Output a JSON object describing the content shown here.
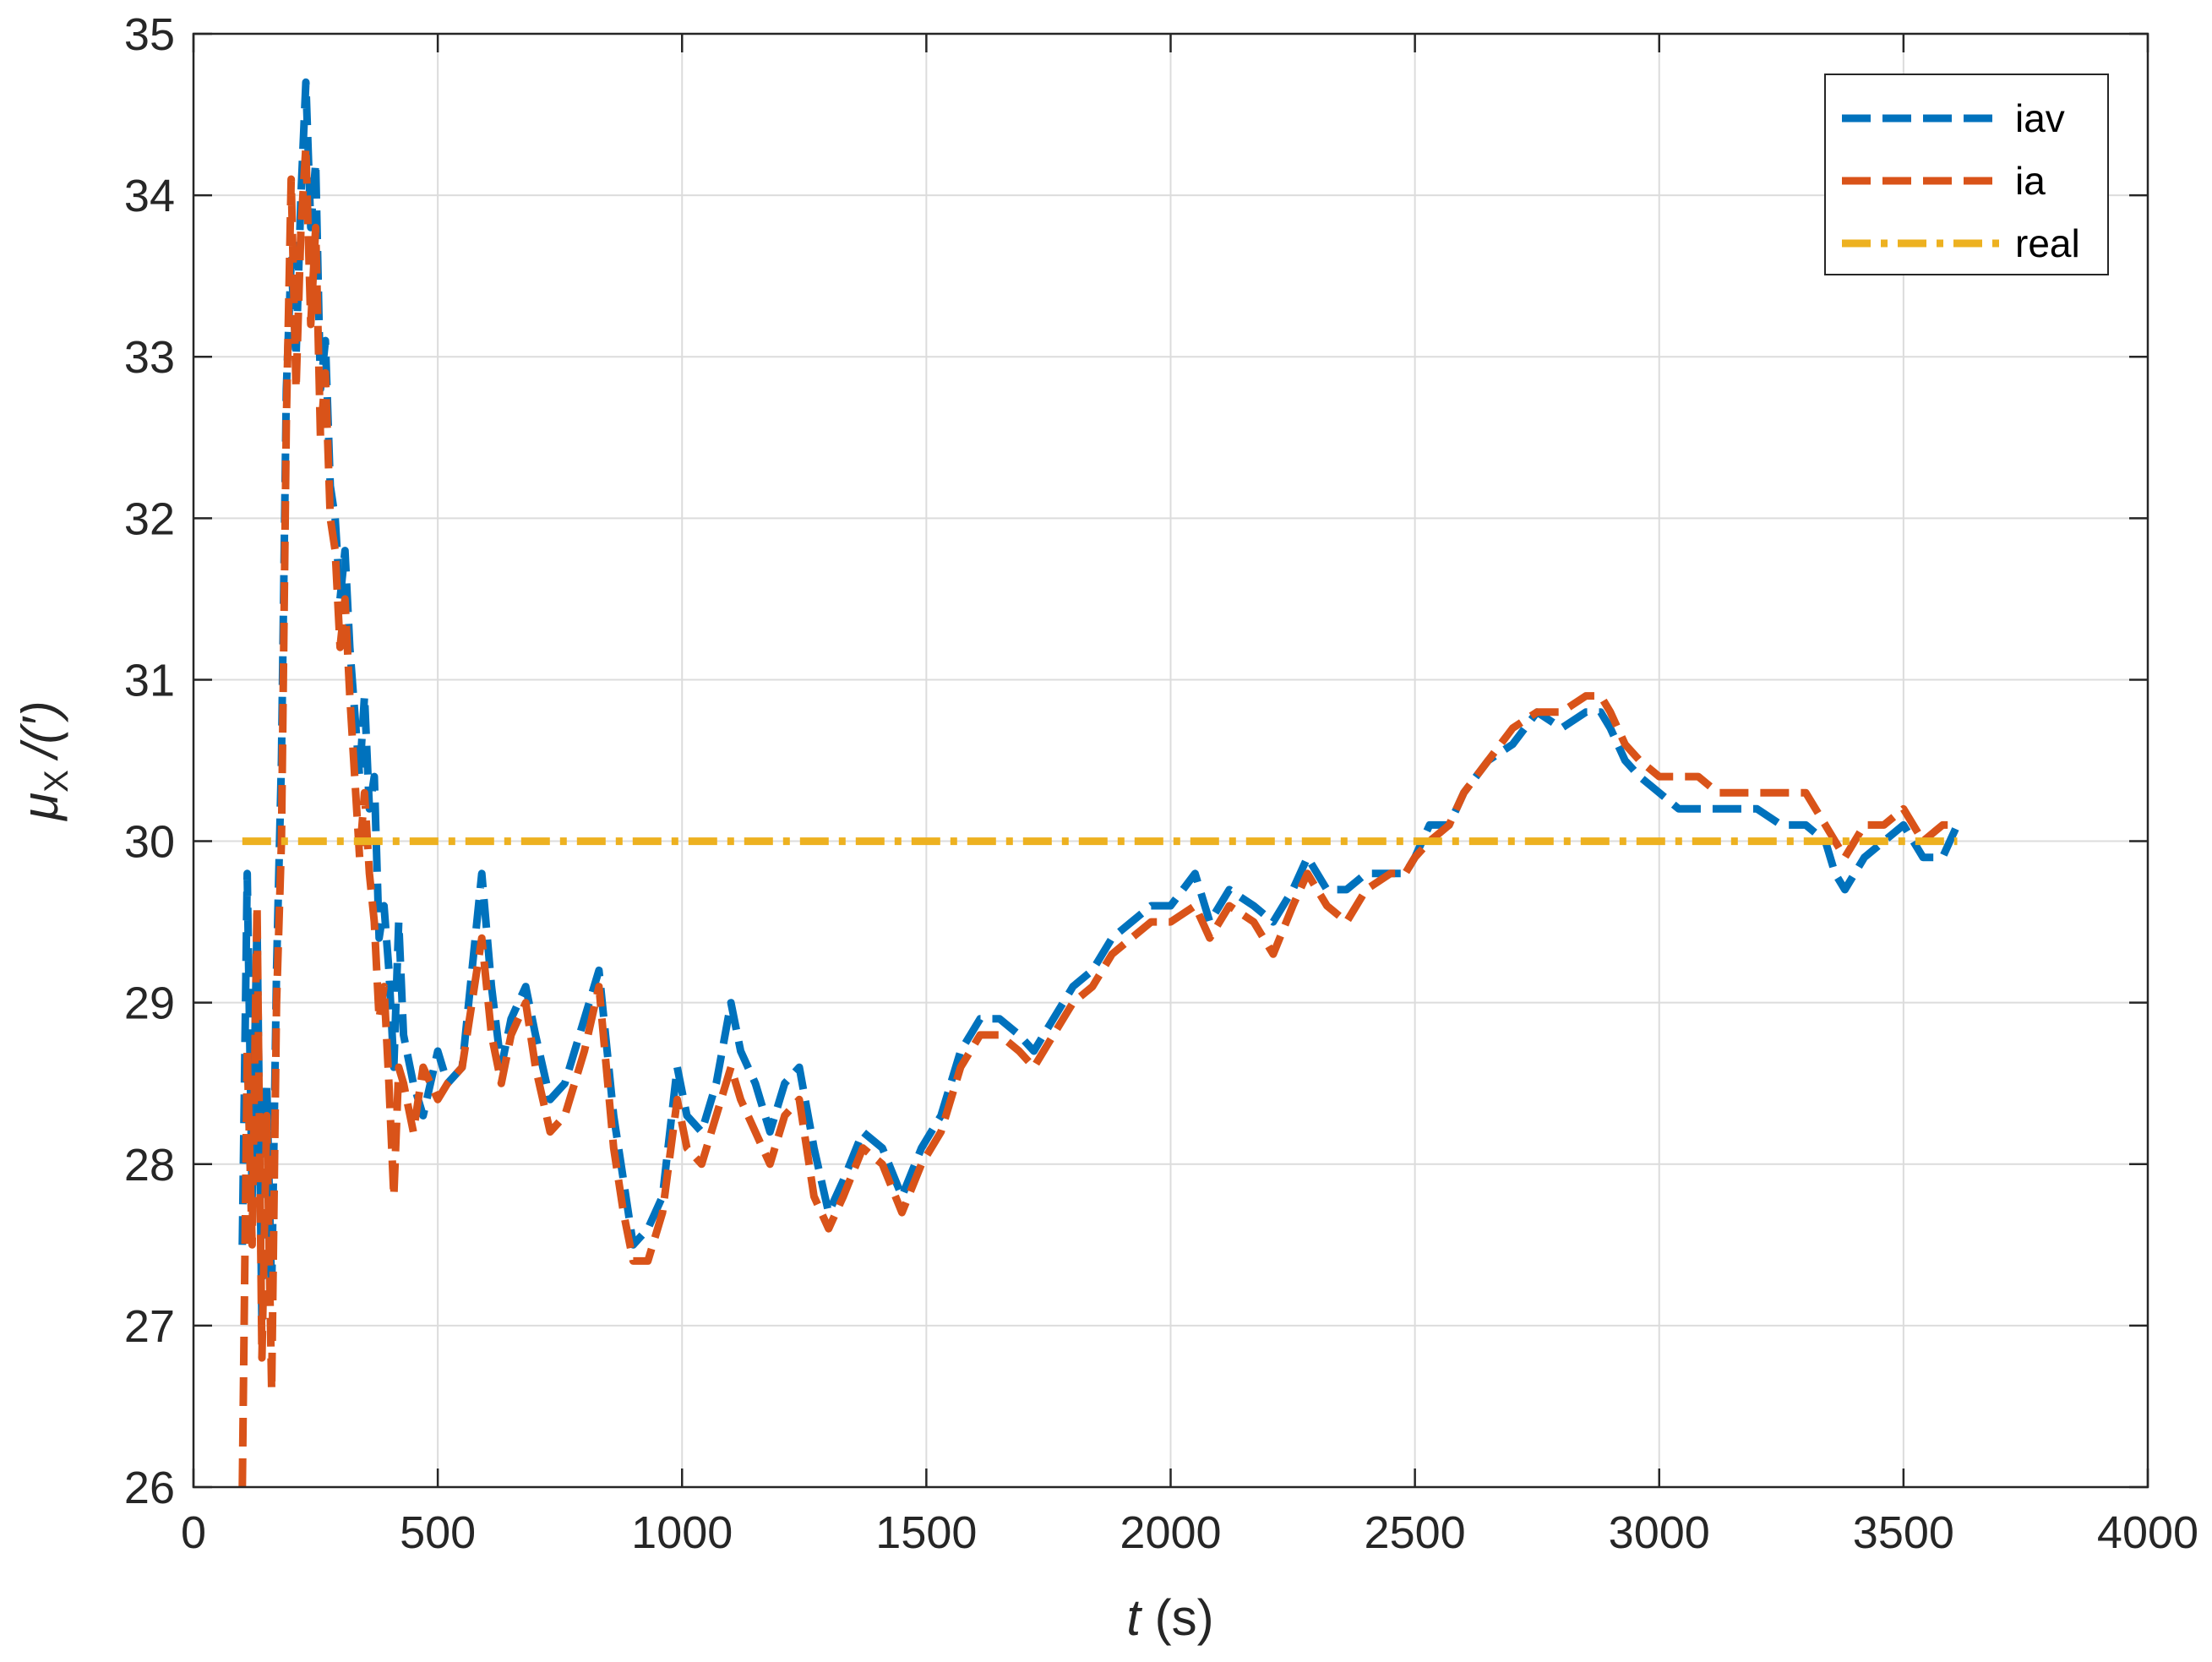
{
  "chart_data": {
    "type": "line",
    "xlabel": {
      "italic": "t",
      "rest": " (s)"
    },
    "ylabel": {
      "symbol": "μ",
      "subscript": "X",
      "rest": "/(′)"
    },
    "xlim": [
      0,
      4000
    ],
    "ylim": [
      26,
      35
    ],
    "xticks": [
      0,
      500,
      1000,
      1500,
      2000,
      2500,
      3000,
      3500,
      4000
    ],
    "yticks": [
      26,
      27,
      28,
      29,
      30,
      31,
      32,
      33,
      34,
      35
    ],
    "xtick_labels": [
      "0",
      "500",
      "1000",
      "1500",
      "2000",
      "2500",
      "3000",
      "3500",
      "4000"
    ],
    "ytick_labels": [
      "26",
      "27",
      "28",
      "29",
      "30",
      "31",
      "32",
      "33",
      "34",
      "35"
    ],
    "grid": true,
    "legend_position": "top-right",
    "series": [
      {
        "name": "iav",
        "color": "#0072BD",
        "dash": "dashed",
        "points": [
          [
            100,
            27.5
          ],
          [
            110,
            29.8
          ],
          [
            120,
            27.8
          ],
          [
            130,
            29.5
          ],
          [
            140,
            27.0
          ],
          [
            150,
            28.5
          ],
          [
            160,
            27.2
          ],
          [
            170,
            29.2
          ],
          [
            180,
            30.5
          ],
          [
            190,
            32.8
          ],
          [
            200,
            33.6
          ],
          [
            210,
            33.0
          ],
          [
            220,
            34.0
          ],
          [
            230,
            34.7
          ],
          [
            240,
            33.8
          ],
          [
            250,
            34.2
          ],
          [
            260,
            32.8
          ],
          [
            270,
            33.1
          ],
          [
            280,
            32.2
          ],
          [
            290,
            32.0
          ],
          [
            300,
            31.5
          ],
          [
            310,
            31.8
          ],
          [
            320,
            31.2
          ],
          [
            330,
            30.8
          ],
          [
            340,
            30.4
          ],
          [
            350,
            30.9
          ],
          [
            360,
            30.2
          ],
          [
            370,
            30.4
          ],
          [
            380,
            29.4
          ],
          [
            390,
            29.6
          ],
          [
            400,
            29.2
          ],
          [
            410,
            28.6
          ],
          [
            420,
            29.5
          ],
          [
            430,
            28.8
          ],
          [
            450,
            28.5
          ],
          [
            470,
            28.3
          ],
          [
            500,
            28.7
          ],
          [
            520,
            28.5
          ],
          [
            550,
            28.6
          ],
          [
            570,
            29.2
          ],
          [
            590,
            29.8
          ],
          [
            610,
            29.1
          ],
          [
            630,
            28.6
          ],
          [
            650,
            28.9
          ],
          [
            680,
            29.1
          ],
          [
            700,
            28.8
          ],
          [
            730,
            28.4
          ],
          [
            760,
            28.5
          ],
          [
            800,
            28.9
          ],
          [
            830,
            29.2
          ],
          [
            860,
            28.3
          ],
          [
            880,
            27.9
          ],
          [
            900,
            27.5
          ],
          [
            930,
            27.6
          ],
          [
            960,
            27.8
          ],
          [
            990,
            28.6
          ],
          [
            1010,
            28.3
          ],
          [
            1040,
            28.2
          ],
          [
            1070,
            28.5
          ],
          [
            1100,
            29.0
          ],
          [
            1120,
            28.7
          ],
          [
            1150,
            28.5
          ],
          [
            1180,
            28.2
          ],
          [
            1210,
            28.5
          ],
          [
            1240,
            28.6
          ],
          [
            1270,
            28.1
          ],
          [
            1300,
            27.7
          ],
          [
            1330,
            27.9
          ],
          [
            1370,
            28.2
          ],
          [
            1410,
            28.1
          ],
          [
            1450,
            27.8
          ],
          [
            1490,
            28.1
          ],
          [
            1530,
            28.3
          ],
          [
            1570,
            28.7
          ],
          [
            1610,
            28.9
          ],
          [
            1650,
            28.9
          ],
          [
            1690,
            28.8
          ],
          [
            1720,
            28.7
          ],
          [
            1760,
            28.9
          ],
          [
            1800,
            29.1
          ],
          [
            1840,
            29.2
          ],
          [
            1880,
            29.4
          ],
          [
            1920,
            29.5
          ],
          [
            1960,
            29.6
          ],
          [
            2000,
            29.6
          ],
          [
            2050,
            29.8
          ],
          [
            2080,
            29.5
          ],
          [
            2120,
            29.7
          ],
          [
            2170,
            29.6
          ],
          [
            2210,
            29.5
          ],
          [
            2250,
            29.7
          ],
          [
            2280,
            29.9
          ],
          [
            2320,
            29.7
          ],
          [
            2360,
            29.7
          ],
          [
            2400,
            29.8
          ],
          [
            2450,
            29.8
          ],
          [
            2480,
            29.8
          ],
          [
            2500,
            29.9
          ],
          [
            2530,
            30.1
          ],
          [
            2570,
            30.1
          ],
          [
            2600,
            30.3
          ],
          [
            2650,
            30.5
          ],
          [
            2700,
            30.6
          ],
          [
            2750,
            30.8
          ],
          [
            2800,
            30.7
          ],
          [
            2850,
            30.8
          ],
          [
            2880,
            30.8
          ],
          [
            2900,
            30.7
          ],
          [
            2930,
            30.5
          ],
          [
            2960,
            30.4
          ],
          [
            3000,
            30.3
          ],
          [
            3040,
            30.2
          ],
          [
            3080,
            30.2
          ],
          [
            3120,
            30.2
          ],
          [
            3160,
            30.2
          ],
          [
            3200,
            30.2
          ],
          [
            3250,
            30.1
          ],
          [
            3300,
            30.1
          ],
          [
            3340,
            30.0
          ],
          [
            3360,
            29.8
          ],
          [
            3380,
            29.7
          ],
          [
            3420,
            29.9
          ],
          [
            3460,
            30.0
          ],
          [
            3500,
            30.1
          ],
          [
            3540,
            29.9
          ],
          [
            3580,
            29.9
          ],
          [
            3610,
            30.1
          ]
        ]
      },
      {
        "name": "ia",
        "color": "#D95319",
        "dash": "dashed",
        "points": [
          [
            100,
            26.0
          ],
          [
            110,
            28.7
          ],
          [
            120,
            27.5
          ],
          [
            130,
            29.6
          ],
          [
            140,
            26.8
          ],
          [
            150,
            28.3
          ],
          [
            160,
            26.6
          ],
          [
            170,
            29.0
          ],
          [
            180,
            30.0
          ],
          [
            190,
            32.6
          ],
          [
            200,
            34.1
          ],
          [
            210,
            32.8
          ],
          [
            220,
            33.8
          ],
          [
            230,
            34.3
          ],
          [
            240,
            33.2
          ],
          [
            250,
            33.8
          ],
          [
            260,
            32.5
          ],
          [
            270,
            32.9
          ],
          [
            280,
            32.0
          ],
          [
            290,
            31.8
          ],
          [
            300,
            31.2
          ],
          [
            310,
            31.5
          ],
          [
            320,
            30.9
          ],
          [
            330,
            30.4
          ],
          [
            340,
            29.9
          ],
          [
            350,
            30.3
          ],
          [
            360,
            29.8
          ],
          [
            370,
            29.5
          ],
          [
            380,
            28.9
          ],
          [
            390,
            29.1
          ],
          [
            400,
            28.5
          ],
          [
            410,
            27.8
          ],
          [
            420,
            28.6
          ],
          [
            430,
            28.5
          ],
          [
            450,
            28.2
          ],
          [
            470,
            28.6
          ],
          [
            500,
            28.4
          ],
          [
            520,
            28.5
          ],
          [
            550,
            28.6
          ],
          [
            570,
            29.0
          ],
          [
            590,
            29.4
          ],
          [
            610,
            28.8
          ],
          [
            630,
            28.5
          ],
          [
            650,
            28.8
          ],
          [
            680,
            29.0
          ],
          [
            700,
            28.6
          ],
          [
            730,
            28.2
          ],
          [
            760,
            28.3
          ],
          [
            800,
            28.7
          ],
          [
            830,
            29.1
          ],
          [
            860,
            28.1
          ],
          [
            880,
            27.7
          ],
          [
            900,
            27.4
          ],
          [
            930,
            27.4
          ],
          [
            960,
            27.7
          ],
          [
            990,
            28.4
          ],
          [
            1010,
            28.1
          ],
          [
            1040,
            28.0
          ],
          [
            1070,
            28.3
          ],
          [
            1100,
            28.6
          ],
          [
            1120,
            28.4
          ],
          [
            1150,
            28.2
          ],
          [
            1180,
            28.0
          ],
          [
            1210,
            28.3
          ],
          [
            1240,
            28.4
          ],
          [
            1270,
            27.8
          ],
          [
            1300,
            27.6
          ],
          [
            1330,
            27.8
          ],
          [
            1370,
            28.1
          ],
          [
            1410,
            28.0
          ],
          [
            1450,
            27.7
          ],
          [
            1490,
            28.0
          ],
          [
            1530,
            28.2
          ],
          [
            1570,
            28.6
          ],
          [
            1610,
            28.8
          ],
          [
            1650,
            28.8
          ],
          [
            1690,
            28.7
          ],
          [
            1720,
            28.6
          ],
          [
            1760,
            28.8
          ],
          [
            1800,
            29.0
          ],
          [
            1840,
            29.1
          ],
          [
            1880,
            29.3
          ],
          [
            1920,
            29.4
          ],
          [
            1960,
            29.5
          ],
          [
            2000,
            29.5
          ],
          [
            2050,
            29.6
          ],
          [
            2080,
            29.4
          ],
          [
            2120,
            29.6
          ],
          [
            2170,
            29.5
          ],
          [
            2210,
            29.3
          ],
          [
            2250,
            29.6
          ],
          [
            2280,
            29.8
          ],
          [
            2320,
            29.6
          ],
          [
            2360,
            29.5
          ],
          [
            2400,
            29.7
          ],
          [
            2450,
            29.8
          ],
          [
            2480,
            29.8
          ],
          [
            2500,
            29.9
          ],
          [
            2530,
            30.0
          ],
          [
            2570,
            30.1
          ],
          [
            2600,
            30.3
          ],
          [
            2650,
            30.5
          ],
          [
            2700,
            30.7
          ],
          [
            2750,
            30.8
          ],
          [
            2800,
            30.8
          ],
          [
            2850,
            30.9
          ],
          [
            2880,
            30.9
          ],
          [
            2900,
            30.8
          ],
          [
            2930,
            30.6
          ],
          [
            2960,
            30.5
          ],
          [
            3000,
            30.4
          ],
          [
            3040,
            30.4
          ],
          [
            3080,
            30.4
          ],
          [
            3120,
            30.3
          ],
          [
            3160,
            30.3
          ],
          [
            3200,
            30.3
          ],
          [
            3250,
            30.3
          ],
          [
            3300,
            30.3
          ],
          [
            3340,
            30.1
          ],
          [
            3360,
            30.0
          ],
          [
            3380,
            29.9
          ],
          [
            3420,
            30.1
          ],
          [
            3460,
            30.1
          ],
          [
            3500,
            30.2
          ],
          [
            3540,
            30.0
          ],
          [
            3580,
            30.1
          ],
          [
            3610,
            30.1
          ]
        ]
      },
      {
        "name": "real",
        "color": "#EDB120",
        "dash": "dashdot",
        "points": [
          [
            100,
            30
          ],
          [
            3610,
            30
          ]
        ]
      }
    ]
  }
}
